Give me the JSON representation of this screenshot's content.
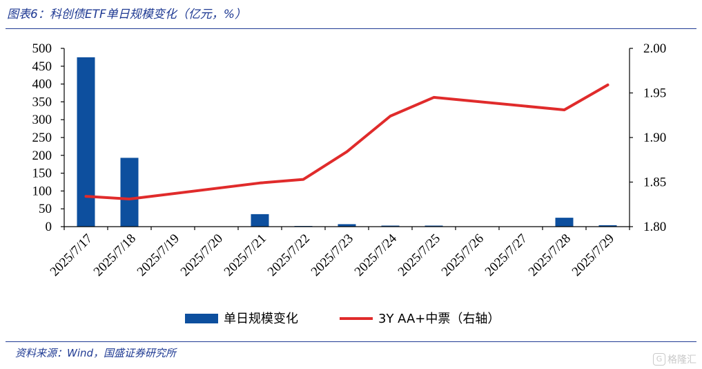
{
  "header": {
    "title": "图表6：科创债ETF单日规模变化（亿元，%）"
  },
  "footer": {
    "source": "资料来源：Wind，国盛证券研究所",
    "watermark": "格隆汇"
  },
  "colors": {
    "bar": "#0d4f9e",
    "line": "#e02b2b",
    "rule": "#1f3a93",
    "axis": "#000000"
  },
  "chart_data": {
    "type": "bar",
    "categories": [
      "2025/7/17",
      "2025/7/18",
      "2025/7/19",
      "2025/7/20",
      "2025/7/21",
      "2025/7/22",
      "2025/7/23",
      "2025/7/24",
      "2025/7/25",
      "2025/7/26",
      "2025/7/27",
      "2025/7/28",
      "2025/7/29"
    ],
    "left_axis": {
      "range": [
        0,
        500
      ],
      "ticks": [
        "0",
        "50",
        "100",
        "150",
        "200",
        "250",
        "300",
        "350",
        "400",
        "450",
        "500"
      ]
    },
    "right_axis": {
      "range": [
        1.8,
        2.0
      ],
      "ticks": [
        "1.80",
        "1.85",
        "1.90",
        "1.95",
        "2.00"
      ]
    },
    "grid": false,
    "legend_position": "bottom",
    "series": [
      {
        "name": "单日规模变化",
        "type": "bar",
        "axis": "left",
        "values": [
          475,
          193,
          0,
          0,
          35,
          2,
          7,
          3,
          3,
          0,
          0,
          25,
          4
        ]
      },
      {
        "name": "3Y AA+中票（右轴）",
        "type": "line",
        "axis": "right",
        "points": [
          {
            "x": "2025/7/17",
            "y": 1.834
          },
          {
            "x": "2025/7/18",
            "y": 1.831
          },
          {
            "x": "2025/7/21",
            "y": 1.849
          },
          {
            "x": "2025/7/22",
            "y": 1.853
          },
          {
            "x": "2025/7/23",
            "y": 1.884
          },
          {
            "x": "2025/7/24",
            "y": 1.924
          },
          {
            "x": "2025/7/25",
            "y": 1.945
          },
          {
            "x": "2025/7/28",
            "y": 1.931
          },
          {
            "x": "2025/7/29",
            "y": 1.959
          }
        ]
      }
    ]
  }
}
